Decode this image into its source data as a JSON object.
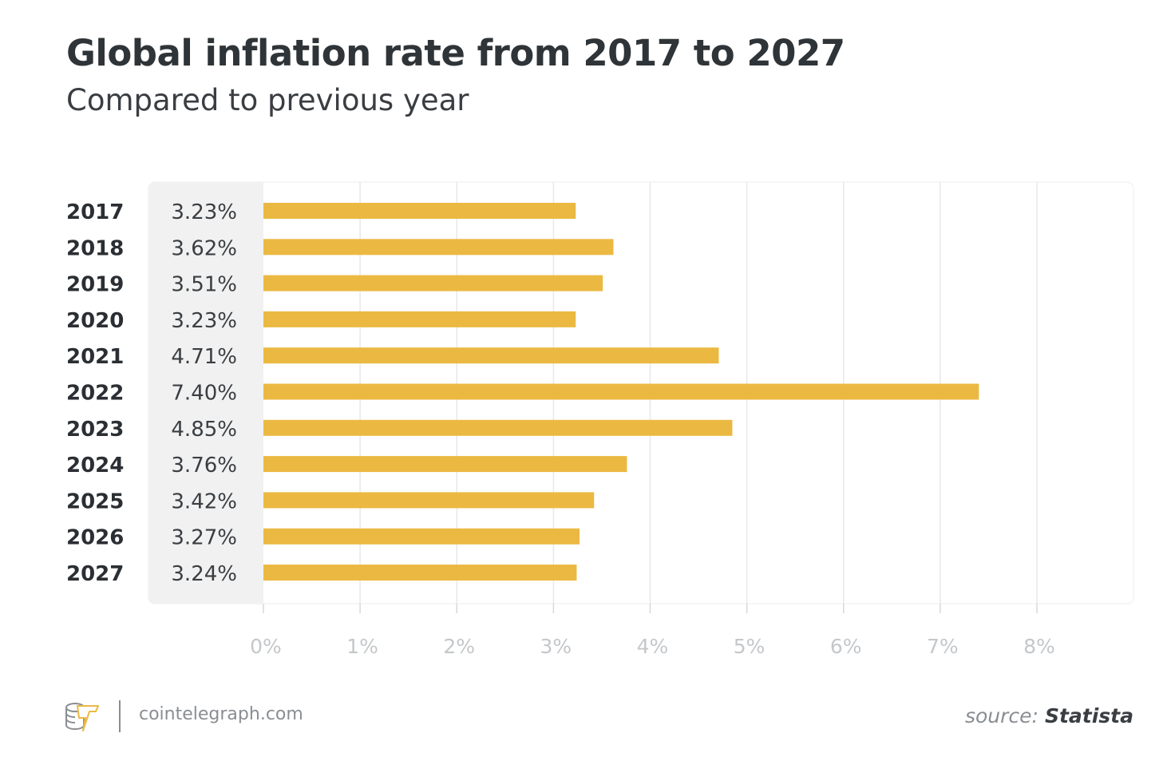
{
  "chart_data": {
    "type": "bar",
    "orientation": "horizontal",
    "title": "Global inflation rate from 2017 to 2027",
    "subtitle": "Compared to previous year",
    "categories": [
      "2017",
      "2018",
      "2019",
      "2020",
      "2021",
      "2022",
      "2023",
      "2024",
      "2025",
      "2026",
      "2027"
    ],
    "values": [
      3.23,
      3.62,
      3.51,
      3.23,
      4.71,
      7.4,
      4.85,
      3.76,
      3.42,
      3.27,
      3.24
    ],
    "value_labels": [
      "3.23%",
      "3.62%",
      "3.51%",
      "3.23%",
      "4.71%",
      "7.40%",
      "4.85%",
      "3.76%",
      "3.42%",
      "3.27%",
      "3.24%"
    ],
    "xlim": [
      0,
      8
    ],
    "x_ticks": [
      0,
      1,
      2,
      3,
      4,
      5,
      6,
      7,
      8
    ],
    "x_tick_labels": [
      "0%",
      "1%",
      "2%",
      "3%",
      "4%",
      "5%",
      "6%",
      "7%",
      "8%"
    ],
    "xlabel": "",
    "ylabel": "",
    "grid": true,
    "bar_color": "#ebb942"
  },
  "footer": {
    "site": "cointelegraph.com",
    "source_prefix": "source:",
    "source_name": "Statista"
  }
}
